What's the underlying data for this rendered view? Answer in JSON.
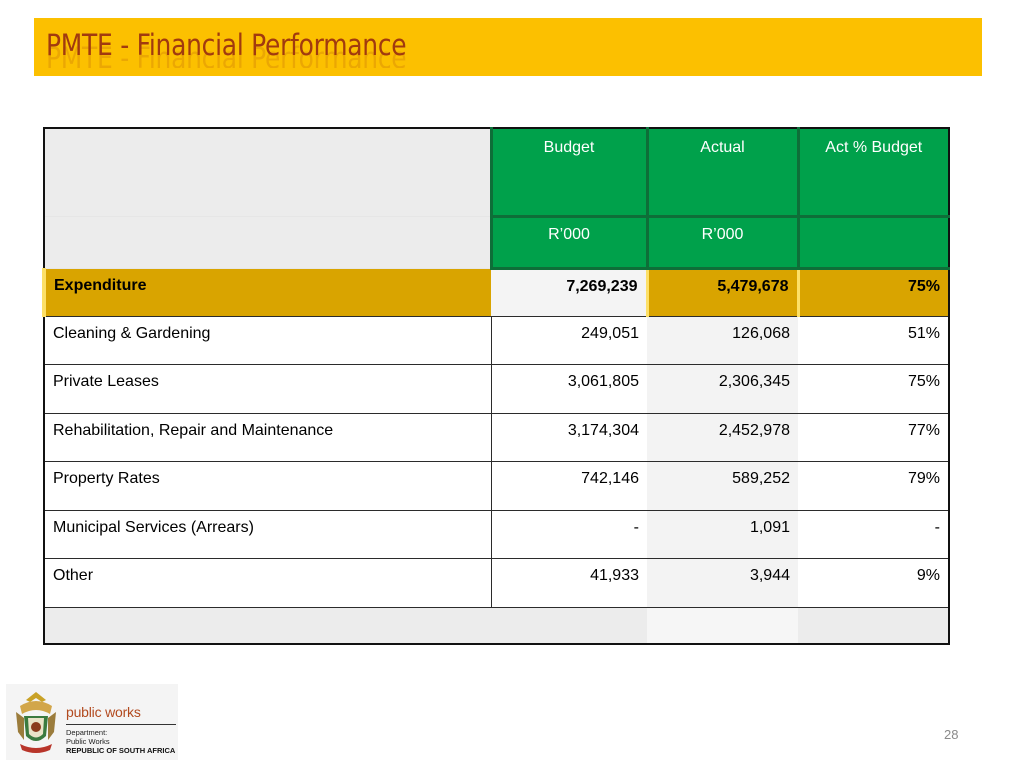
{
  "slide": {
    "title": "PMTE - Financial Performance",
    "page_number": "28"
  },
  "table": {
    "headers": [
      "Budget",
      "Actual",
      "Act % Budget"
    ],
    "units": [
      "R’000",
      "R’000",
      ""
    ],
    "expenditure": {
      "label": "Expenditure",
      "budget": "7,269,239",
      "actual": "5,479,678",
      "pct": "75%"
    },
    "rows": [
      {
        "label": "Cleaning & Gardening",
        "budget": "249,051",
        "actual": "126,068",
        "pct": "51%"
      },
      {
        "label": "Private Leases",
        "budget": "3,061,805",
        "actual": "2,306,345",
        "pct": "75%"
      },
      {
        "label": "Rehabilitation, Repair and Maintenance",
        "budget": "3,174,304",
        "actual": "2,452,978",
        "pct": "77%"
      },
      {
        "label": "Property Rates",
        "budget": "742,146",
        "actual": "589,252",
        "pct": "79%"
      },
      {
        "label": "Municipal Services (Arrears)",
        "budget": "-",
        "actual": "1,091",
        "pct": "-"
      },
      {
        "label": "Other",
        "budget": "41,933",
        "actual": "3,944",
        "pct": "9%"
      }
    ]
  },
  "logo": {
    "brand": "public works",
    "line1": "Department:",
    "line2": "Public Works",
    "line3": "REPUBLIC OF SOUTH AFRICA"
  },
  "colors": {
    "title_bar": "#fcc000",
    "title_text": "#a13a0f",
    "header_green": "#00a14b",
    "expenditure_gold": "#d9a400"
  }
}
